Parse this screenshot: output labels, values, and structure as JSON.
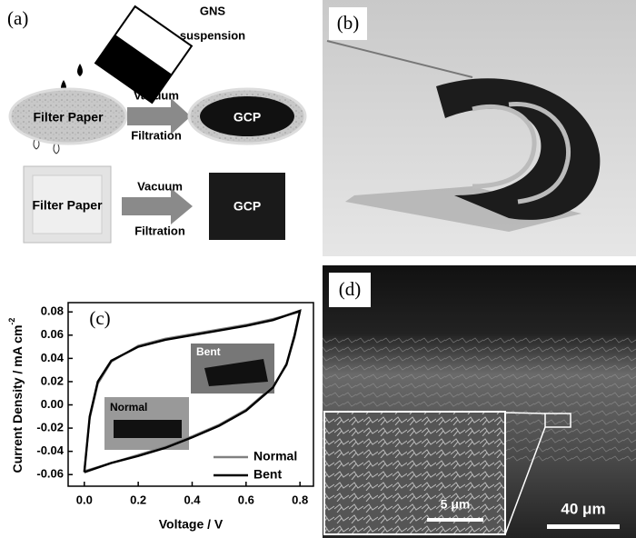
{
  "panels": {
    "a": {
      "label": "(a)",
      "suspension_label": [
        "GNS",
        "suspension"
      ],
      "top_row": {
        "source": "Filter Paper",
        "arrow": [
          "Vacuum",
          "Filtration"
        ],
        "product": "GCP"
      },
      "bottom_row": {
        "source": "Filter Paper",
        "arrow": [
          "Vacuum",
          "Filtration"
        ],
        "product": "GCP"
      }
    },
    "b": {
      "label": "(b)"
    },
    "c": {
      "label": "(c)",
      "chart_data": {
        "type": "line",
        "x_label": "Voltage / V",
        "y_label": "Current Density  / mA cm",
        "y_label_sup": "-2",
        "xlim": [
          -0.06,
          0.85
        ],
        "ylim": [
          -0.07,
          0.088
        ],
        "xticks": [
          {
            "value": 0,
            "label": "0.0"
          },
          0.2,
          0.4,
          0.6,
          0.8
        ],
        "yticks": [
          -0.06,
          -0.04,
          -0.02,
          {
            "value": 0,
            "label": "0.00"
          },
          0.02,
          0.04,
          0.06,
          0.08
        ],
        "legend": "lower right",
        "annotations": [
          "Normal",
          "Bent"
        ],
        "series": [
          {
            "name": "Normal",
            "color": "#808080",
            "x": [
              0,
              0.02,
              0.05,
              0.1,
              0.2,
              0.3,
              0.4,
              0.5,
              0.6,
              0.7,
              0.8,
              0.78,
              0.75,
              0.7,
              0.6,
              0.5,
              0.4,
              0.3,
              0.2,
              0.1,
              0
            ],
            "values": [
              -0.057,
              -0.012,
              0.018,
              0.037,
              0.051,
              0.057,
              0.061,
              0.065,
              0.069,
              0.074,
              0.08,
              0.058,
              0.034,
              0.016,
              -0.004,
              -0.017,
              -0.027,
              -0.036,
              -0.043,
              -0.05,
              -0.057
            ]
          },
          {
            "name": "Bent",
            "color": "#000000",
            "x": [
              0,
              0.02,
              0.05,
              0.1,
              0.2,
              0.3,
              0.4,
              0.5,
              0.6,
              0.7,
              0.8,
              0.78,
              0.75,
              0.7,
              0.6,
              0.5,
              0.4,
              0.3,
              0.2,
              0.1,
              0
            ],
            "values": [
              -0.058,
              -0.01,
              0.02,
              0.038,
              0.05,
              0.056,
              0.06,
              0.064,
              0.068,
              0.073,
              0.081,
              0.06,
              0.035,
              0.015,
              -0.005,
              -0.018,
              -0.028,
              -0.037,
              -0.044,
              -0.05,
              -0.058
            ]
          }
        ]
      }
    },
    "d": {
      "label": "(d)",
      "inset_scale": "5 μm",
      "scale": "40 μm"
    }
  }
}
